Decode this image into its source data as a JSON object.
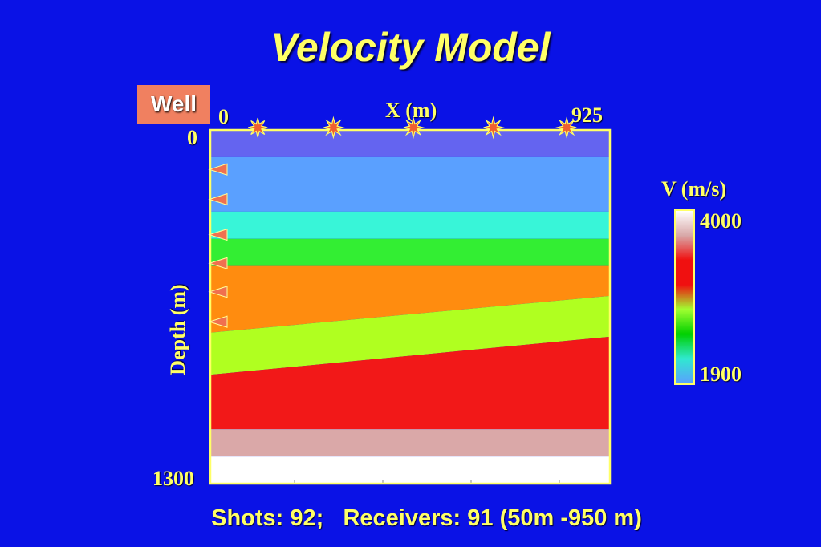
{
  "title": "Velocity Model",
  "well_label": "Well",
  "x_axis": {
    "label": "X (m)",
    "min_label": "0",
    "max_label": "925"
  },
  "y_axis": {
    "label": "Depth (m)",
    "min_label": "0",
    "max_label": "1300"
  },
  "colorbar": {
    "label": "V (m/s)",
    "max_label": "4000",
    "min_label": "1900",
    "stops": [
      "#ffffff",
      "#d8a8a8",
      "#f01010",
      "#f01010",
      "#a0ff30",
      "#00d000",
      "#30e8d0",
      "#5aa0ff"
    ]
  },
  "footer": "Shots: 92;   Receivers: 91 (50m -950 m)",
  "chart_data": {
    "type": "velocity-model",
    "xlim": [
      0,
      925
    ],
    "ylim": [
      0,
      1300
    ],
    "layers": [
      {
        "color": "#6464f0",
        "top_left": 0,
        "top_right": 0,
        "bottom_left": 100,
        "bottom_right": 100
      },
      {
        "color": "#5aa0ff",
        "top_left": 100,
        "top_right": 100,
        "bottom_left": 300,
        "bottom_right": 300
      },
      {
        "color": "#38f5d8",
        "top_left": 300,
        "top_right": 300,
        "bottom_left": 400,
        "bottom_right": 400
      },
      {
        "color": "#33ee33",
        "top_left": 400,
        "top_right": 400,
        "bottom_left": 500,
        "bottom_right": 500
      },
      {
        "color": "#ff8c0f",
        "top_left": 500,
        "top_right": 500,
        "bottom_left": 745,
        "bottom_right": 610
      },
      {
        "color": "#b0ff20",
        "top_left": 745,
        "top_right": 610,
        "bottom_left": 900,
        "bottom_right": 760
      },
      {
        "color": "#f21818",
        "top_left": 900,
        "top_right": 760,
        "bottom_left": 1100,
        "bottom_right": 1100
      },
      {
        "color": "#daa8a8",
        "top_left": 1100,
        "top_right": 1100,
        "bottom_left": 1200,
        "bottom_right": 1200
      },
      {
        "color": "#ffffff",
        "top_left": 1200,
        "top_right": 1200,
        "bottom_left": 1300,
        "bottom_right": 1300
      }
    ],
    "shots_x": [
      110,
      285,
      470,
      655,
      825
    ],
    "receivers_depth": [
      145,
      255,
      385,
      490,
      595,
      705
    ]
  }
}
